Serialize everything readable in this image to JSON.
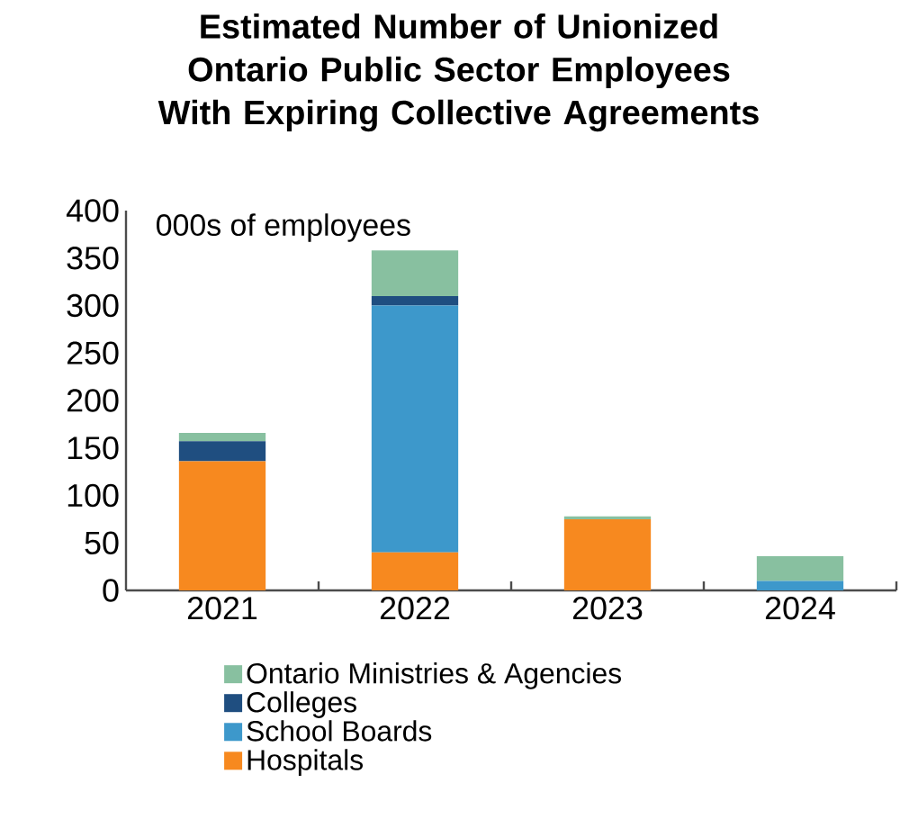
{
  "chart_data": {
    "type": "bar",
    "stacked": true,
    "title": "Estimated Number of Unionized Ontario Public Sector Employees With Expiring Collective Agreements",
    "annotations": [
      "000s of employees"
    ],
    "categories": [
      "2021",
      "2022",
      "2023",
      "2024"
    ],
    "ylim": [
      0,
      400
    ],
    "yticks": [
      0,
      50,
      100,
      150,
      200,
      250,
      300,
      350,
      400
    ],
    "legend": "bottom",
    "grid": false,
    "series": [
      {
        "name": "Hospitals",
        "color": "#f7891f",
        "values": [
          136,
          40,
          75,
          0
        ]
      },
      {
        "name": "School Boards",
        "color": "#3d98cb",
        "values": [
          0,
          260,
          0,
          10
        ]
      },
      {
        "name": "Colleges",
        "color": "#1f4e80",
        "values": [
          21,
          10,
          0,
          0
        ]
      },
      {
        "name": "Ontario Ministries & Agencies",
        "color": "#88c0a0",
        "values": [
          9,
          48,
          3,
          26
        ]
      }
    ]
  }
}
